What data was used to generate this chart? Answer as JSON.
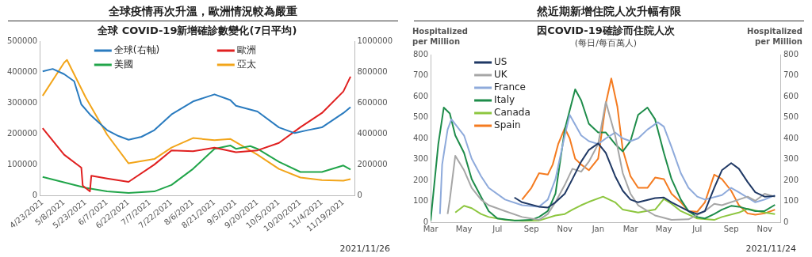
{
  "chart_data": [
    {
      "type": "line",
      "title": "全球疫情再次升溫，歐洲情況較為嚴重",
      "subtitle": "全球 COVID-19新增確診數變化(7日平均)",
      "annotations": [
        "2021/11/26"
      ],
      "xlim": [
        "2021-04-21",
        "2021-11-27"
      ],
      "xticks": [
        {
          "value": "2021-04-23",
          "label": "4/23/2021"
        },
        {
          "value": "2021-05-08",
          "label": "5/8/2021"
        },
        {
          "value": "2021-05-23",
          "label": "5/23/2021"
        },
        {
          "value": "2021-06-07",
          "label": "6/7/2021"
        },
        {
          "value": "2021-06-22",
          "label": "6/22/2021"
        },
        {
          "value": "2021-07-07",
          "label": "7/7/2021"
        },
        {
          "value": "2021-07-22",
          "label": "7/22/2021"
        },
        {
          "value": "2021-08-06",
          "label": "8/6/2021"
        },
        {
          "value": "2021-08-21",
          "label": "8/21/2021"
        },
        {
          "value": "2021-09-05",
          "label": "9/5/2021"
        },
        {
          "value": "2021-09-20",
          "label": "9/20/2021"
        },
        {
          "value": "2021-10-05",
          "label": "10/5/2021"
        },
        {
          "value": "2021-10-20",
          "label": "10/20/2021"
        },
        {
          "value": "2021-11-04",
          "label": "11/4/2021"
        },
        {
          "value": "2021-11-19",
          "label": "11/19/2021"
        }
      ],
      "ylim": [
        0,
        500000
      ],
      "yticks": [
        0,
        100000,
        200000,
        300000,
        400000,
        500000
      ],
      "y2lim": [
        0,
        1000000
      ],
      "y2ticks": [
        0,
        200000,
        400000,
        600000,
        800000,
        1000000
      ],
      "legend": "top",
      "series": [
        {
          "name": "全球(右軸)",
          "color": "#2a7bbf",
          "axis": "y2",
          "x": [
            "2021-04-23",
            "2021-04-30",
            "2021-05-08",
            "2021-05-15",
            "2021-05-20",
            "2021-05-26",
            "2021-06-07",
            "2021-06-15",
            "2021-06-22",
            "2021-07-01",
            "2021-07-10",
            "2021-07-22",
            "2021-08-06",
            "2021-08-21",
            "2021-09-01",
            "2021-09-05",
            "2021-09-20",
            "2021-10-05",
            "2021-10-16",
            "2021-10-25",
            "2021-11-04",
            "2021-11-19",
            "2021-11-24"
          ],
          "values": [
            804000,
            820000,
            786000,
            740000,
            590000,
            525000,
            423000,
            385000,
            361000,
            380000,
            423000,
            525000,
            609000,
            655000,
            618000,
            581000,
            544000,
            441000,
            404000,
            423000,
            441000,
            534000,
            572000
          ]
        },
        {
          "name": "歐洲",
          "color": "#e02020",
          "x": [
            "2021-04-23",
            "2021-05-08",
            "2021-05-20",
            "2021-05-21",
            "2021-05-26",
            "2021-05-27",
            "2021-06-07",
            "2021-06-22",
            "2021-07-10",
            "2021-07-22",
            "2021-08-06",
            "2021-08-21",
            "2021-09-05",
            "2021-09-20",
            "2021-10-05",
            "2021-10-20",
            "2021-11-04",
            "2021-11-19",
            "2021-11-24"
          ],
          "values": [
            218000,
            132000,
            90000,
            32000,
            13000,
            64000,
            55000,
            44000,
            100000,
            146000,
            143000,
            155000,
            140000,
            146000,
            170000,
            221000,
            267000,
            337000,
            385000
          ]
        },
        {
          "name": "美國",
          "color": "#21a54a",
          "x": [
            "2021-04-23",
            "2021-05-23",
            "2021-06-07",
            "2021-06-22",
            "2021-07-10",
            "2021-07-22",
            "2021-08-06",
            "2021-08-21",
            "2021-09-01",
            "2021-09-05",
            "2021-09-15",
            "2021-09-20",
            "2021-10-05",
            "2021-10-20",
            "2021-11-04",
            "2021-11-19",
            "2021-11-24"
          ],
          "values": [
            60000,
            25000,
            13000,
            8000,
            13000,
            34000,
            86000,
            151000,
            162000,
            151000,
            160000,
            151000,
            109000,
            76000,
            76000,
            97000,
            84000
          ]
        },
        {
          "name": "亞太",
          "color": "#f2a51a",
          "x": [
            "2021-04-23",
            "2021-05-08",
            "2021-05-10",
            "2021-05-23",
            "2021-06-07",
            "2021-06-22",
            "2021-07-10",
            "2021-07-22",
            "2021-08-06",
            "2021-08-21",
            "2021-09-01",
            "2021-09-20",
            "2021-10-05",
            "2021-10-20",
            "2021-11-04",
            "2021-11-19",
            "2021-11-24"
          ],
          "values": [
            323000,
            430000,
            439000,
            318000,
            197000,
            104000,
            118000,
            155000,
            186000,
            179000,
            183000,
            132000,
            86000,
            58000,
            50000,
            48000,
            53000
          ]
        }
      ]
    },
    {
      "type": "line",
      "title": "然近期新增住院人次升幅有限",
      "subtitle": "因COVID-19確診而住院人次\n(每日/每百萬人)",
      "ylabel": "Hospitalized per Million",
      "y2label": "Hospitalized per Million",
      "annotations": [
        "2021/11/24"
      ],
      "xlim": [
        "2020-03",
        "2021-12"
      ],
      "xticks": [
        {
          "value": "2020-03",
          "label": "Mar"
        },
        {
          "value": "2020-05",
          "label": "May"
        },
        {
          "value": "2020-07",
          "label": "Jul"
        },
        {
          "value": "2020-09",
          "label": "Sep"
        },
        {
          "value": "2020-11",
          "label": "Nov"
        },
        {
          "value": "2021-01",
          "label": "Jan"
        },
        {
          "value": "2021-03",
          "label": "Mar"
        },
        {
          "value": "2021-05",
          "label": "May"
        },
        {
          "value": "2021-07",
          "label": "Jul"
        },
        {
          "value": "2021-09",
          "label": "Sep"
        },
        {
          "value": "2021-11",
          "label": "Nov"
        }
      ],
      "ylim": [
        0,
        800
      ],
      "yticks": [
        0,
        100,
        200,
        300,
        400,
        500,
        600,
        700,
        800
      ],
      "y2lim": [
        0,
        800
      ],
      "y2ticks": [
        0,
        100,
        200,
        300,
        400,
        500,
        600,
        700,
        800
      ],
      "legend": "top left",
      "series": [
        {
          "name": "US",
          "color": "#1f3864",
          "x": [
            "2020-08-01",
            "2020-08-15",
            "2020-09-15",
            "2020-10-01",
            "2020-10-15",
            "2020-11-01",
            "2020-11-15",
            "2020-12-01",
            "2020-12-15",
            "2021-01-01",
            "2021-01-15",
            "2021-02-01",
            "2021-02-15",
            "2021-03-01",
            "2021-03-15",
            "2021-04-15",
            "2021-05-01",
            "2021-05-15",
            "2021-06-15",
            "2021-07-01",
            "2021-07-15",
            "2021-08-01",
            "2021-08-15",
            "2021-09-01",
            "2021-09-15",
            "2021-10-01",
            "2021-10-15",
            "2021-11-01",
            "2021-11-20"
          ],
          "values": [
            118,
            95,
            74,
            70,
            95,
            136,
            206,
            289,
            345,
            376,
            331,
            220,
            150,
            108,
            95,
            115,
            118,
            95,
            53,
            39,
            53,
            164,
            248,
            282,
            255,
            192,
            143,
            122,
            125
          ]
        },
        {
          "name": "UK",
          "color": "#a6a6a6",
          "x": [
            "2020-04-01",
            "2020-04-05",
            "2020-04-15",
            "2020-05-01",
            "2020-05-15",
            "2020-06-01",
            "2020-06-15",
            "2020-07-15",
            "2020-08-15",
            "2020-09-15",
            "2020-10-01",
            "2020-10-15",
            "2020-11-01",
            "2020-11-15",
            "2020-12-01",
            "2020-12-15",
            "2021-01-01",
            "2021-01-15",
            "2021-02-01",
            "2021-02-15",
            "2021-03-01",
            "2021-03-15",
            "2021-04-15",
            "2021-05-15",
            "2021-06-15",
            "2021-07-15",
            "2021-08-01",
            "2021-08-15",
            "2021-09-15",
            "2021-10-01",
            "2021-10-15",
            "2021-11-01",
            "2021-11-20"
          ],
          "values": [
            39,
            108,
            317,
            248,
            164,
            108,
            81,
            53,
            25,
            11,
            39,
            95,
            178,
            255,
            241,
            289,
            373,
            574,
            414,
            234,
            136,
            81,
            32,
            11,
            14,
            53,
            88,
            81,
            108,
            122,
            102,
            136,
            122
          ]
        },
        {
          "name": "France",
          "color": "#8eaadb",
          "x": [
            "2020-03-18",
            "2020-03-22",
            "2020-04-01",
            "2020-04-08",
            "2020-05-01",
            "2020-05-15",
            "2020-06-01",
            "2020-06-15",
            "2020-07-15",
            "2020-08-15",
            "2020-09-15",
            "2020-10-01",
            "2020-10-15",
            "2020-11-01",
            "2020-11-10",
            "2020-12-01",
            "2020-12-15",
            "2021-01-01",
            "2021-01-15",
            "2021-02-01",
            "2021-02-15",
            "2021-03-01",
            "2021-03-15",
            "2021-04-01",
            "2021-04-20",
            "2021-05-01",
            "2021-05-15",
            "2021-06-01",
            "2021-06-15",
            "2021-07-01",
            "2021-07-15",
            "2021-08-15",
            "2021-09-01",
            "2021-09-15",
            "2021-10-15",
            "2021-11-01",
            "2021-11-20"
          ],
          "values": [
            39,
            275,
            442,
            491,
            414,
            303,
            220,
            164,
            108,
            81,
            74,
            108,
            206,
            414,
            512,
            414,
            387,
            373,
            400,
            428,
            400,
            387,
            400,
            442,
            477,
            456,
            359,
            234,
            164,
            122,
            108,
            129,
            164,
            143,
            95,
            108,
            129
          ]
        },
        {
          "name": "Italy",
          "color": "#1e8c4a",
          "x": [
            "2020-03-01",
            "2020-03-15",
            "2020-03-25",
            "2020-04-05",
            "2020-04-15",
            "2020-05-01",
            "2020-05-15",
            "2020-06-01",
            "2020-06-15",
            "2020-07-01",
            "2020-08-01",
            "2020-09-01",
            "2020-09-15",
            "2020-10-01",
            "2020-10-15",
            "2020-11-01",
            "2020-11-20",
            "2020-12-01",
            "2020-12-15",
            "2021-01-01",
            "2021-01-15",
            "2021-02-01",
            "2021-02-15",
            "2021-03-01",
            "2021-03-15",
            "2021-04-01",
            "2021-04-15",
            "2021-05-01",
            "2021-05-15",
            "2021-06-01",
            "2021-06-15",
            "2021-07-01",
            "2021-07-15",
            "2021-08-01",
            "2021-08-15",
            "2021-09-01",
            "2021-09-15",
            "2021-10-15",
            "2021-11-01",
            "2021-11-20"
          ],
          "values": [
            8,
            373,
            547,
            519,
            414,
            331,
            206,
            122,
            53,
            18,
            8,
            11,
            25,
            53,
            136,
            442,
            634,
            581,
            470,
            428,
            428,
            373,
            338,
            387,
            512,
            547,
            491,
            331,
            206,
            108,
            53,
            25,
            18,
            39,
            60,
            78,
            74,
            53,
            53,
            83
          ]
        },
        {
          "name": "Canada",
          "color": "#8dc63f",
          "x": [
            "2020-04-15",
            "2020-05-01",
            "2020-05-15",
            "2020-06-01",
            "2020-06-15",
            "2020-07-15",
            "2020-08-15",
            "2020-09-15",
            "2020-10-15",
            "2020-11-01",
            "2020-11-15",
            "2020-12-01",
            "2020-12-15",
            "2021-01-10",
            "2021-02-01",
            "2021-02-15",
            "2021-03-15",
            "2021-04-15",
            "2021-05-01",
            "2021-05-15",
            "2021-06-01",
            "2021-07-01",
            "2021-08-01",
            "2021-08-15",
            "2021-09-15",
            "2021-10-01",
            "2021-10-15",
            "2021-11-01",
            "2021-11-20"
          ],
          "values": [
            46,
            78,
            67,
            39,
            25,
            11,
            7,
            8,
            32,
            39,
            60,
            81,
            97,
            122,
            95,
            60,
            46,
            60,
            111,
            88,
            53,
            18,
            11,
            25,
            46,
            64,
            56,
            46,
            39
          ]
        },
        {
          "name": "Spain",
          "color": "#f47b20",
          "x": [
            "2020-08-15",
            "2020-09-01",
            "2020-09-15",
            "2020-10-01",
            "2020-10-10",
            "2020-10-20",
            "2020-11-01",
            "2020-11-10",
            "2020-11-20",
            "2020-12-01",
            "2020-12-15",
            "2021-01-01",
            "2021-01-15",
            "2021-01-25",
            "2021-02-05",
            "2021-02-15",
            "2021-03-01",
            "2021-03-15",
            "2021-04-01",
            "2021-04-15",
            "2021-05-01",
            "2021-05-15",
            "2021-06-01",
            "2021-06-15",
            "2021-07-01",
            "2021-07-15",
            "2021-08-01",
            "2021-08-15",
            "2021-09-01",
            "2021-09-15",
            "2021-10-01",
            "2021-10-15",
            "2021-11-01",
            "2021-11-20"
          ],
          "values": [
            108,
            164,
            234,
            227,
            275,
            373,
            449,
            400,
            303,
            275,
            248,
            303,
            567,
            686,
            553,
            345,
            220,
            164,
            164,
            213,
            206,
            136,
            95,
            53,
            50,
            95,
            227,
            206,
            150,
            81,
            42,
            36,
            42,
            60
          ]
        }
      ]
    }
  ]
}
